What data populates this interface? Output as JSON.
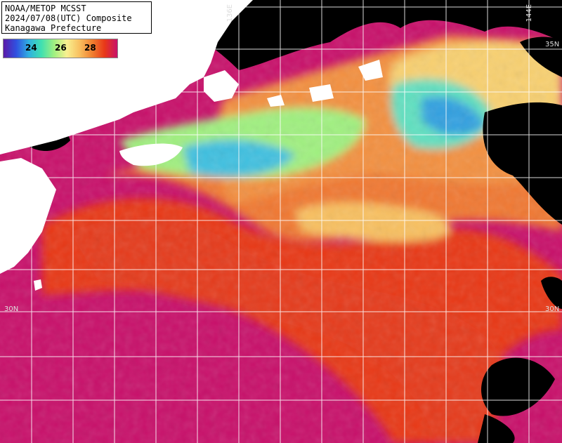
{
  "header": {
    "line1": "NOAA/METOP MCSST",
    "line2": "2024/07/08(UTC) Composite",
    "line3": "Kanagawa Prefecture"
  },
  "colorbar": {
    "labels": [
      "24",
      "26",
      "28"
    ],
    "stops": [
      "#5a1aa8",
      "#3050e0",
      "#30b0e0",
      "#40e0b0",
      "#a0f080",
      "#f8f090",
      "#f8c060",
      "#f08030",
      "#e83818",
      "#c8106a"
    ]
  },
  "coords": {
    "lon1": "136E",
    "lon2": "144E",
    "lat_top_right": "35N",
    "lat_left": "30N",
    "lat_right": "30N"
  },
  "colors": {
    "land": "#ffffff",
    "cloud": "#000000",
    "grid": "#ffffff",
    "warm_core": "#c8106a"
  }
}
